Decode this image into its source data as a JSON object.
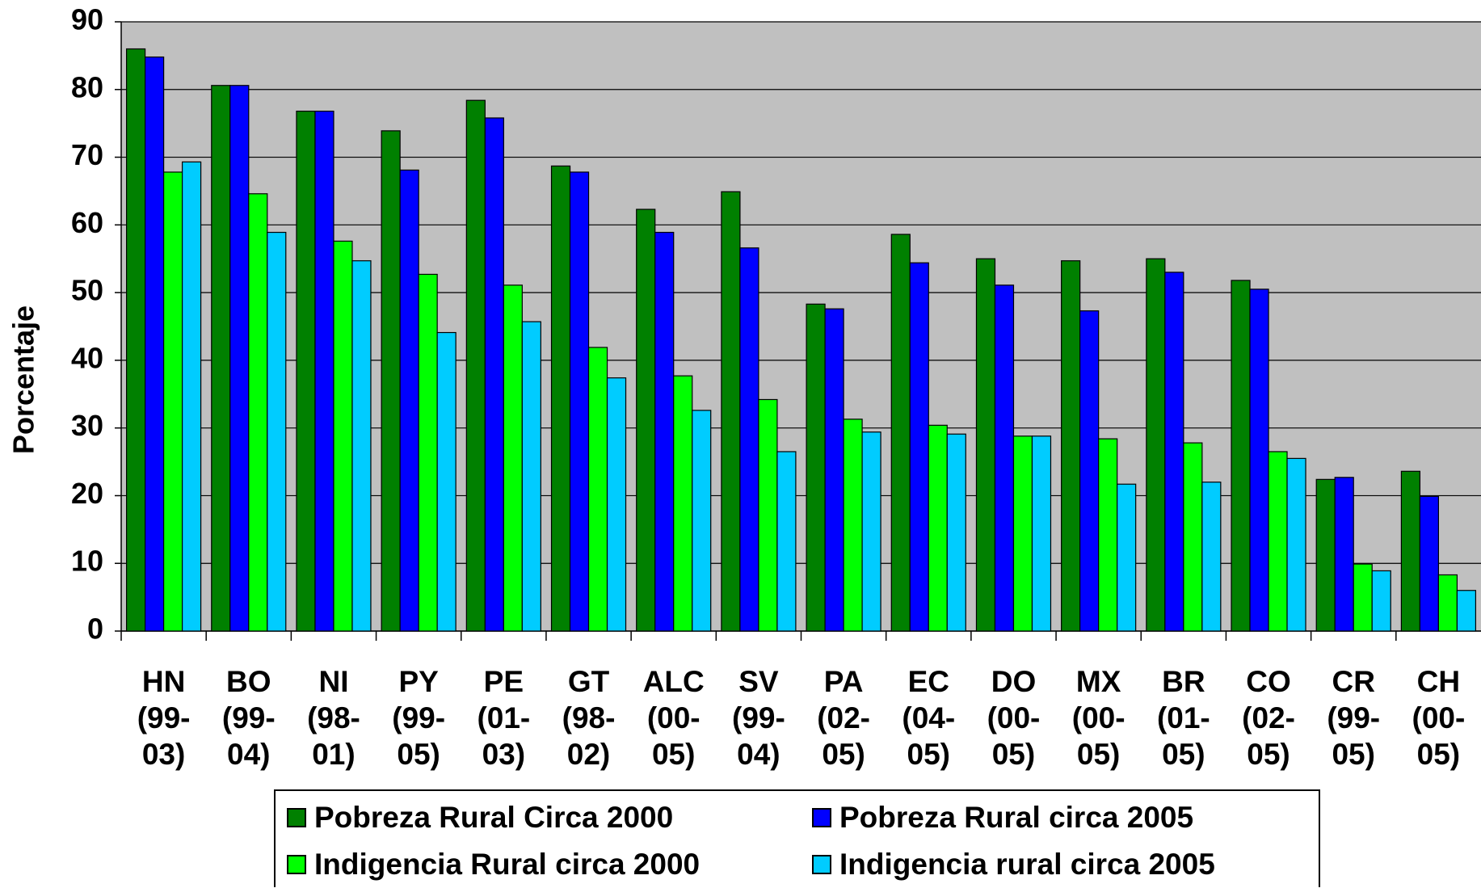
{
  "chart_data": {
    "type": "bar",
    "y_label": "Porcentaje",
    "categories": [
      "HN (99-03)",
      "BO (99-04)",
      "NI (98-01)",
      "PY (99-05)",
      "PE (01-03)",
      "GT (98-02)",
      "ALC (00-05)",
      "SV (99-04)",
      "PA (02-05)",
      "EC (04-05)",
      "DO (00-05)",
      "MX (00-05)",
      "BR (01-05)",
      "CO (02-05)",
      "CR (99-05)",
      "CH (00-05)"
    ],
    "series": [
      {
        "name": "Pobreza Rural Circa 2000",
        "color": "#008000",
        "values": [
          86.0,
          80.6,
          76.8,
          73.9,
          78.4,
          68.7,
          62.3,
          64.9,
          48.3,
          58.6,
          55.0,
          54.7,
          55.0,
          51.8,
          22.4,
          23.6
        ]
      },
      {
        "name": "Pobreza Rural circa 2005",
        "color": "#0000ff",
        "values": [
          84.8,
          80.6,
          76.8,
          68.1,
          75.8,
          67.8,
          58.9,
          56.6,
          47.6,
          54.4,
          51.1,
          47.3,
          53.0,
          50.5,
          22.7,
          19.9
        ]
      },
      {
        "name": "Indigencia Rural circa 2000",
        "color": "#00ff00",
        "values": [
          67.8,
          64.6,
          57.6,
          52.7,
          51.1,
          41.9,
          37.7,
          34.2,
          31.3,
          30.4,
          28.8,
          28.4,
          27.8,
          26.5,
          9.9,
          8.3
        ]
      },
      {
        "name": "Indigencia rural circa 2005",
        "color": "#00ccff",
        "values": [
          69.3,
          58.9,
          54.7,
          44.1,
          45.7,
          37.4,
          32.6,
          26.5,
          29.4,
          29.1,
          28.8,
          21.7,
          22.0,
          25.5,
          8.9,
          6.0
        ]
      }
    ],
    "ylim": [
      0,
      90
    ],
    "yticks": [
      0,
      10,
      20,
      30,
      40,
      50,
      60,
      70,
      80,
      90
    ],
    "grid": true
  }
}
